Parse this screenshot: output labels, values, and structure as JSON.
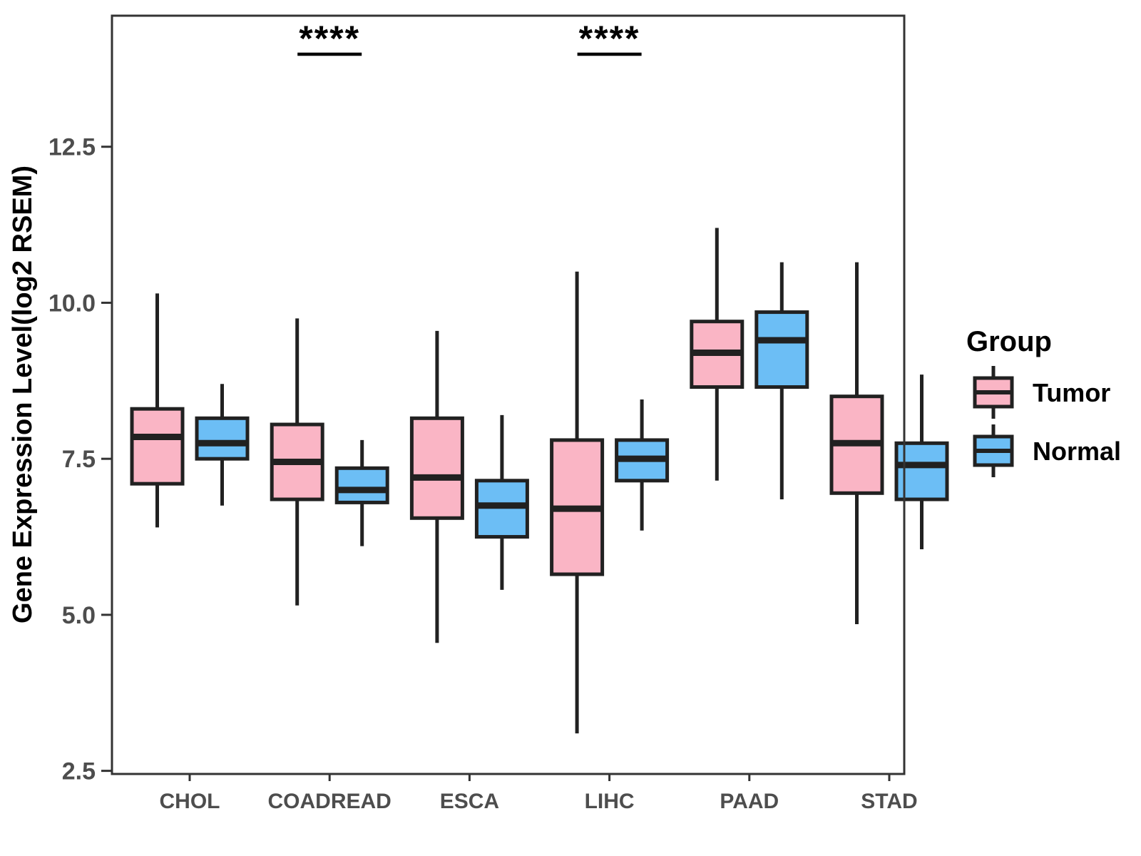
{
  "chart_data": {
    "type": "boxplot",
    "title": "",
    "xlabel": "",
    "ylabel": "Gene Expression Level(log2 RSEM)",
    "categories": [
      "CHOL",
      "COADREAD",
      "ESCA",
      "LIHC",
      "PAAD",
      "STAD"
    ],
    "y_ticks": [
      2.5,
      5.0,
      7.5,
      10.0,
      12.5
    ],
    "y_tick_labels": [
      "2.5",
      "5.0",
      "7.5",
      "10.0",
      "12.5"
    ],
    "ylim": [
      2.45,
      14.6
    ],
    "grid": "off",
    "series": [
      {
        "name": "Tumor",
        "color": "#FAB5C5",
        "boxes": [
          {
            "category": "CHOL",
            "min": 6.4,
            "q1": 7.1,
            "median": 7.85,
            "q3": 8.3,
            "max": 10.15
          },
          {
            "category": "COADREAD",
            "min": 5.15,
            "q1": 6.85,
            "median": 7.45,
            "q3": 8.05,
            "max": 9.75
          },
          {
            "category": "ESCA",
            "min": 4.55,
            "q1": 6.55,
            "median": 7.2,
            "q3": 8.15,
            "max": 9.55
          },
          {
            "category": "LIHC",
            "min": 3.1,
            "q1": 5.65,
            "median": 6.7,
            "q3": 7.8,
            "max": 10.5
          },
          {
            "category": "PAAD",
            "min": 7.15,
            "q1": 8.65,
            "median": 9.2,
            "q3": 9.7,
            "max": 11.2
          },
          {
            "category": "STAD",
            "min": 4.85,
            "q1": 6.95,
            "median": 7.75,
            "q3": 8.5,
            "max": 10.65
          }
        ]
      },
      {
        "name": "Normal",
        "color": "#6CBEF5",
        "boxes": [
          {
            "category": "CHOL",
            "min": 6.75,
            "q1": 7.5,
            "median": 7.75,
            "q3": 8.15,
            "max": 8.7
          },
          {
            "category": "COADREAD",
            "min": 6.1,
            "q1": 6.8,
            "median": 7.0,
            "q3": 7.35,
            "max": 7.8
          },
          {
            "category": "ESCA",
            "min": 5.4,
            "q1": 6.25,
            "median": 6.75,
            "q3": 7.15,
            "max": 8.2
          },
          {
            "category": "LIHC",
            "min": 6.35,
            "q1": 7.15,
            "median": 7.5,
            "q3": 7.8,
            "max": 8.45
          },
          {
            "category": "PAAD",
            "min": 6.85,
            "q1": 8.65,
            "median": 9.4,
            "q3": 9.85,
            "max": 10.65
          },
          {
            "category": "STAD",
            "min": 6.05,
            "q1": 6.85,
            "median": 7.4,
            "q3": 7.75,
            "max": 8.85
          }
        ]
      }
    ],
    "significance": [
      {
        "category": "COADREAD",
        "label": "****"
      },
      {
        "category": "LIHC",
        "label": "****"
      }
    ],
    "legend": {
      "title": "Group",
      "position": "right",
      "entries": [
        {
          "label": "Tumor",
          "color": "#FAB5C5"
        },
        {
          "label": "Normal",
          "color": "#6CBEF5"
        }
      ]
    },
    "style_colors": {
      "box_stroke": "#212121",
      "panel_border": "#333333",
      "tick_mark": "#333333",
      "tick_label": "#4D4D4D",
      "axis_title": "#000000",
      "significance": "#000000"
    }
  }
}
